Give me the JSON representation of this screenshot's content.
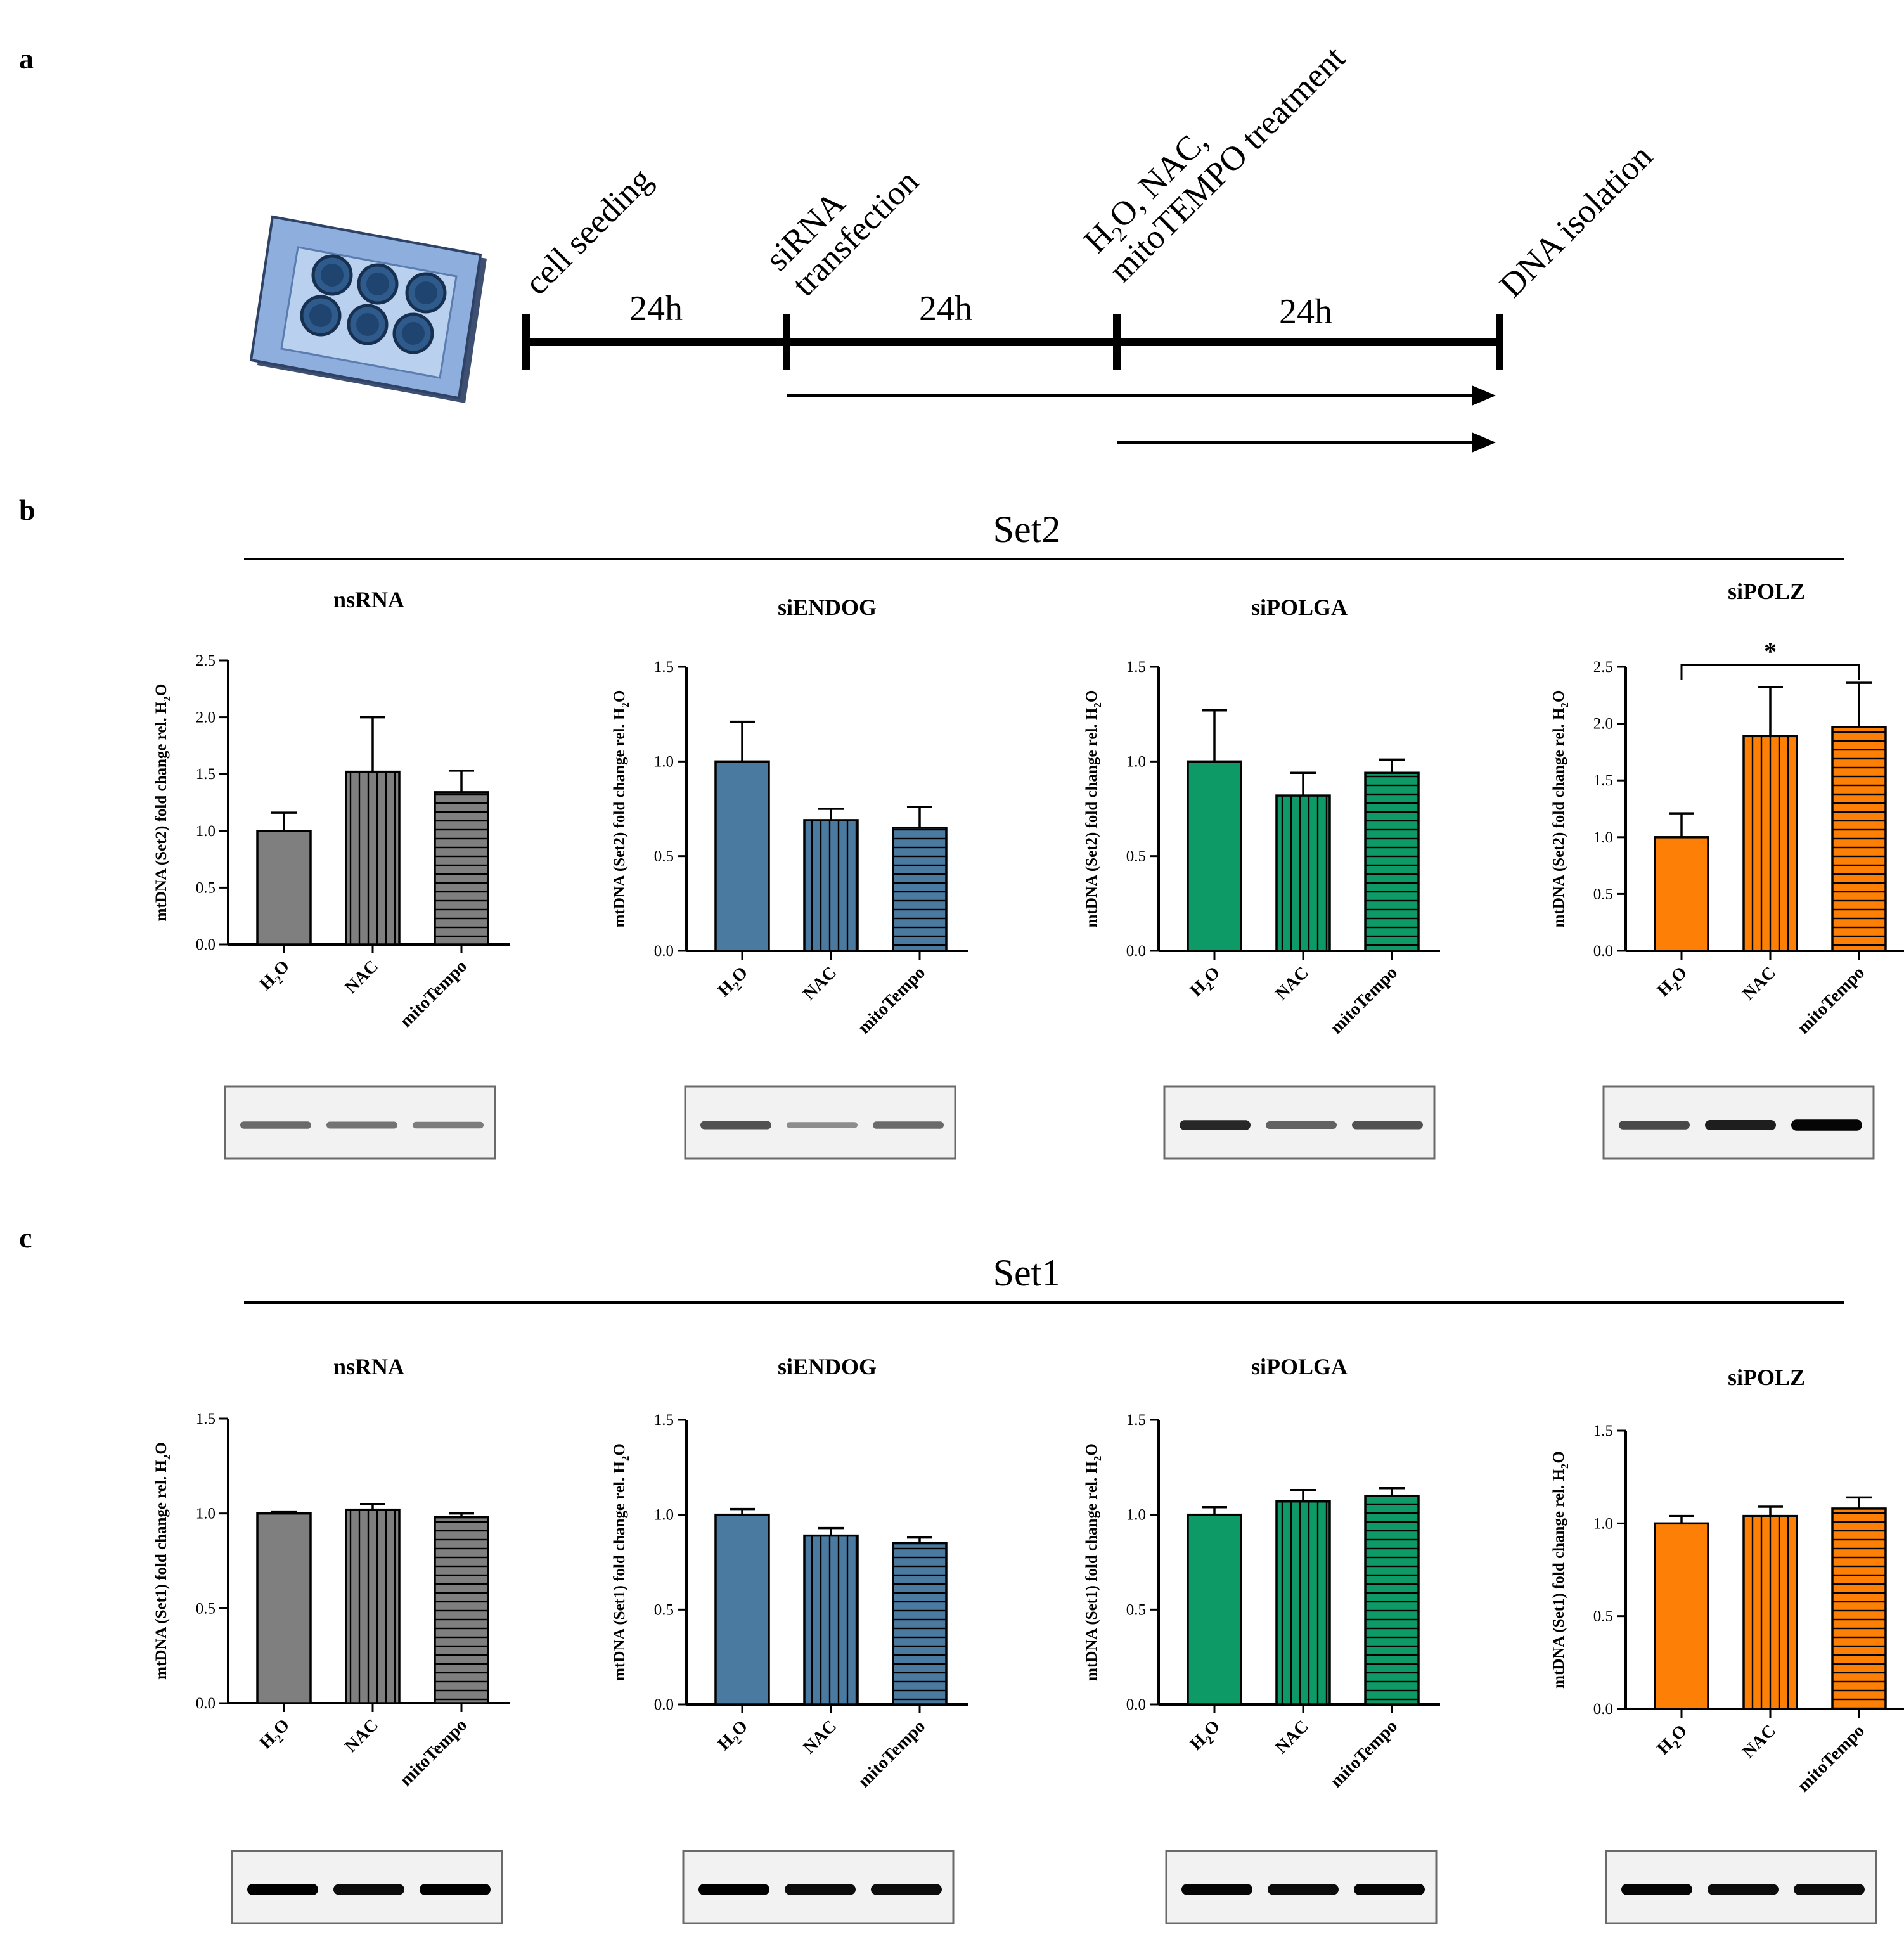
{
  "panel_labels": {
    "a": "a",
    "b": "b",
    "c": "c"
  },
  "timeline": {
    "steps": [
      "cell seeding",
      "siRNA",
      "transfection",
      "H",
      "2",
      "O, NAC,",
      "mitoTEMPO treatment",
      "DNA isolation"
    ],
    "durations": [
      "24h",
      "24h",
      "24h"
    ]
  },
  "colors": {
    "nsRNA": "#7f7f7f",
    "siENDOG": "#4a7aa0",
    "siPOLGA": "#0e9a66",
    "siPOLZ": "#fd7f05"
  },
  "sections": [
    {
      "title": "Set2"
    },
    {
      "title": "Set1"
    }
  ],
  "y_axis": {
    "prefix_set2": "mtDNA (Set2) fold change rel. H",
    "prefix_set1": "mtDNA (Set1) fold change rel. H",
    "sub": "2",
    "suffix": "O"
  },
  "categories_display": [
    {
      "main": "H",
      "sub": "2",
      "tail": "O"
    },
    {
      "main": "NAC",
      "sub": "",
      "tail": ""
    },
    {
      "main": "mitoTempo",
      "sub": "",
      "tail": ""
    }
  ],
  "significance": "*",
  "chart_data": [
    {
      "type": "bar",
      "section": "Set2",
      "title": "nsRNA",
      "color_key": "nsRNA",
      "categories": [
        "H2O",
        "NAC",
        "mitoTempo"
      ],
      "values": [
        1.0,
        1.52,
        1.34
      ],
      "errors": [
        0.16,
        0.48,
        0.19
      ],
      "ylim": [
        0,
        2.5
      ],
      "yticks": [
        "0.0",
        "0.5",
        "1.0",
        "1.5",
        "2.0",
        "2.5"
      ],
      "ylabel": "mtDNA (Set2) fold change rel. H2O",
      "patterns": [
        "solid",
        "vertical",
        "horizontal"
      ],
      "gel": [
        0.55,
        0.5,
        0.45
      ]
    },
    {
      "type": "bar",
      "section": "Set2",
      "title": "siENDOG",
      "color_key": "siENDOG",
      "categories": [
        "H2O",
        "NAC",
        "mitoTempo"
      ],
      "values": [
        1.0,
        0.69,
        0.65
      ],
      "errors": [
        0.21,
        0.06,
        0.11
      ],
      "ylim": [
        0,
        1.5
      ],
      "yticks": [
        "0.0",
        "0.5",
        "1.0",
        "1.5"
      ],
      "ylabel": "mtDNA (Set2) fold change rel. H2O",
      "patterns": [
        "solid",
        "vertical",
        "horizontal"
      ],
      "gel": [
        0.7,
        0.35,
        0.55
      ]
    },
    {
      "type": "bar",
      "section": "Set2",
      "title": "siPOLGA",
      "color_key": "siPOLGA",
      "categories": [
        "H2O",
        "NAC",
        "mitoTempo"
      ],
      "values": [
        1.0,
        0.82,
        0.94
      ],
      "errors": [
        0.27,
        0.12,
        0.07
      ],
      "ylim": [
        0,
        1.5
      ],
      "yticks": [
        "0.0",
        "0.5",
        "1.0",
        "1.5"
      ],
      "ylabel": "mtDNA (Set2) fold change rel. H2O",
      "patterns": [
        "solid",
        "vertical",
        "horizontal"
      ],
      "gel": [
        0.95,
        0.6,
        0.7
      ]
    },
    {
      "type": "bar",
      "section": "Set2",
      "title": "siPOLZ",
      "color_key": "siPOLZ",
      "categories": [
        "H2O",
        "NAC",
        "mitoTempo"
      ],
      "values": [
        1.0,
        1.89,
        1.97
      ],
      "errors": [
        0.21,
        0.43,
        0.39
      ],
      "ylim": [
        0,
        2.5
      ],
      "yticks": [
        "0.0",
        "0.5",
        "1.0",
        "1.5",
        "2.0",
        "2.5"
      ],
      "ylabel": "mtDNA (Set2) fold change rel. H2O",
      "patterns": [
        "solid",
        "vertical",
        "horizontal"
      ],
      "gel": [
        0.75,
        1.0,
        1.15
      ],
      "significance": {
        "from": 0,
        "to": 2,
        "label": "*"
      }
    },
    {
      "type": "bar",
      "section": "Set1",
      "title": "nsRNA",
      "color_key": "nsRNA",
      "categories": [
        "H2O",
        "NAC",
        "mitoTempo"
      ],
      "values": [
        1.0,
        1.02,
        0.98
      ],
      "errors": [
        0.01,
        0.03,
        0.02
      ],
      "ylim": [
        0,
        1.5
      ],
      "yticks": [
        "0.0",
        "0.5",
        "1.0",
        "1.5"
      ],
      "ylabel": "mtDNA (Set1) fold change rel. H2O",
      "patterns": [
        "solid",
        "vertical",
        "horizontal"
      ],
      "gel": [
        1.2,
        1.1,
        1.2
      ]
    },
    {
      "type": "bar",
      "section": "Set1",
      "title": "siENDOG",
      "color_key": "siENDOG",
      "categories": [
        "H2O",
        "NAC",
        "mitoTempo"
      ],
      "values": [
        1.0,
        0.89,
        0.85
      ],
      "errors": [
        0.03,
        0.04,
        0.03
      ],
      "ylim": [
        0,
        1.5
      ],
      "yticks": [
        "0.0",
        "0.5",
        "1.0",
        "1.5"
      ],
      "ylabel": "mtDNA (Set1) fold change rel. H2O",
      "patterns": [
        "solid",
        "vertical",
        "horizontal"
      ],
      "gel": [
        1.2,
        1.1,
        1.1
      ]
    },
    {
      "type": "bar",
      "section": "Set1",
      "title": "siPOLGA",
      "color_key": "siPOLGA",
      "categories": [
        "H2O",
        "NAC",
        "mitoTempo"
      ],
      "values": [
        1.0,
        1.07,
        1.1
      ],
      "errors": [
        0.04,
        0.06,
        0.04
      ],
      "ylim": [
        0,
        1.5
      ],
      "yticks": [
        "0.0",
        "0.5",
        "1.0",
        "1.5"
      ],
      "ylabel": "mtDNA (Set1) fold change rel. H2O",
      "patterns": [
        "solid",
        "vertical",
        "horizontal"
      ],
      "gel": [
        1.15,
        1.1,
        1.15
      ]
    },
    {
      "type": "bar",
      "section": "Set1",
      "title": "siPOLZ",
      "color_key": "siPOLZ",
      "categories": [
        "H2O",
        "NAC",
        "mitoTempo"
      ],
      "values": [
        1.0,
        1.04,
        1.08
      ],
      "errors": [
        0.04,
        0.05,
        0.06
      ],
      "ylim": [
        0,
        1.5
      ],
      "yticks": [
        "0.0",
        "0.5",
        "1.0",
        "1.5"
      ],
      "ylabel": "mtDNA (Set1) fold change rel. H2O",
      "patterns": [
        "solid",
        "vertical",
        "horizontal"
      ],
      "gel": [
        1.15,
        1.1,
        1.1
      ]
    }
  ]
}
